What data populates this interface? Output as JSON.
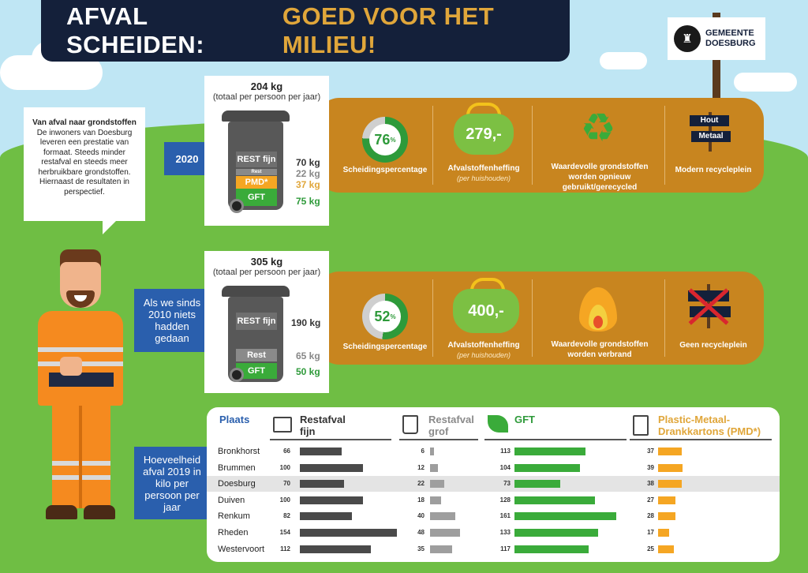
{
  "title": {
    "part1": "AFVAL SCHEIDEN:",
    "part2": "GOED VOOR HET MILIEU!"
  },
  "logo": {
    "line1": "GEMEENTE",
    "line2": "DOESBURG"
  },
  "intro": {
    "heading": "Van afval naar grondstoffen",
    "body": "De inwoners van Doesburg leveren een prestatie van formaat. Steeds minder restafval en steeds meer herbruikbare grondstoffen. Hiernaast de resultaten in perspectief."
  },
  "scenario_2020": {
    "label": "2020",
    "total": "204 kg",
    "total_sub": "(totaal per persoon per jaar)",
    "segments": {
      "rest_fijn": "REST fijn",
      "rest": "Rest",
      "pmd": "PMD*",
      "gft": "GFT"
    },
    "values": {
      "rest_fijn": "70 kg",
      "rest": "22 kg",
      "pmd": "37 kg",
      "gft": "75 kg"
    },
    "percentage": "76",
    "percentage_unit": "%",
    "percentage_label": "Scheidingspercentage",
    "heffing": "279,-",
    "heffing_label": "Afvalstoffenheffing",
    "heffing_sub": "(per huishouden)",
    "grondstoffen_label": "Waardevolle grondstoffen worden opnieuw gebruikt/gerecycled",
    "recycle_label": "Modern recycleplein",
    "sign1": "Hout",
    "sign2": "Metaal"
  },
  "scenario_2010": {
    "label": "Als we sinds 2010 niets hadden gedaan",
    "total": "305 kg",
    "total_sub": "(totaal per persoon per jaar)",
    "segments": {
      "rest_fijn": "REST fijn",
      "rest": "Rest",
      "gft": "GFT"
    },
    "values": {
      "rest_fijn": "190 kg",
      "rest": "65 kg",
      "gft": "50 kg"
    },
    "percentage": "52",
    "percentage_unit": "%",
    "percentage_label": "Scheidingspercentage",
    "heffing": "400,-",
    "heffing_label": "Afvalstoffenheffing",
    "heffing_sub": "(per huishouden)",
    "grondstoffen_label": "Waardevolle grondstoffen worden verbrand",
    "recycle_label": "Geen recycleplein"
  },
  "table": {
    "side_label": "Hoeveelheid afval 2019 in kilo per persoon per jaar",
    "headers": {
      "plaats": "Plaats",
      "rest_fijn": "Restafval fijn",
      "rest_grof": "Restafval grof",
      "gft": "GFT",
      "pmd": "Plastic-Metaal-Drankkartons (PMD*)"
    },
    "rows": [
      {
        "name": "Bronkhorst",
        "rest_fijn": 66,
        "rest_grof": 6,
        "gft": 113,
        "pmd": 37
      },
      {
        "name": "Brummen",
        "rest_fijn": 100,
        "rest_grof": 12,
        "gft": 104,
        "pmd": 39
      },
      {
        "name": "Doesburg",
        "rest_fijn": 70,
        "rest_grof": 22,
        "gft": 73,
        "pmd": 38
      },
      {
        "name": "Duiven",
        "rest_fijn": 100,
        "rest_grof": 18,
        "gft": 128,
        "pmd": 27
      },
      {
        "name": "Renkum",
        "rest_fijn": 82,
        "rest_grof": 40,
        "gft": 161,
        "pmd": 28
      },
      {
        "name": "Rheden",
        "rest_fijn": 154,
        "rest_grof": 48,
        "gft": 133,
        "pmd": 17
      },
      {
        "name": "Westervoort",
        "rest_fijn": 112,
        "rest_grof": 35,
        "gft": 117,
        "pmd": 25
      }
    ],
    "highlight_row": "Doesburg"
  },
  "colors": {
    "navy": "#14203a",
    "gold": "#e0a63a",
    "band": "#c8851f",
    "blue": "#2a5fad",
    "green": "#3aab3a",
    "orange": "#f5a623",
    "dark": "#4a4a4a",
    "grey": "#9e9e9e"
  }
}
